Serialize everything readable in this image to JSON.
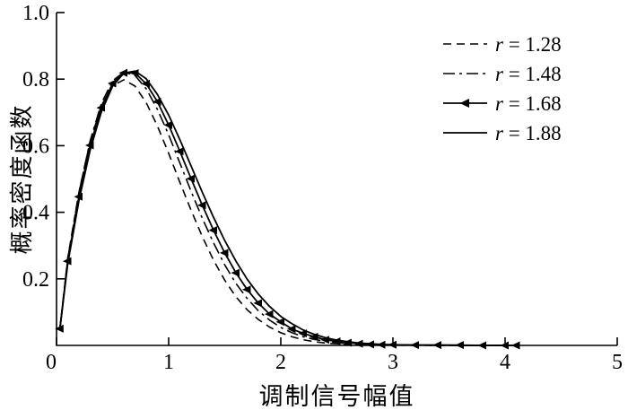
{
  "figure": {
    "background": "#ffffff",
    "axis_color": "#000000",
    "line_color": "#000000"
  },
  "chart_data": {
    "type": "line",
    "title": "",
    "xlabel": "调制信号幅值",
    "ylabel": "概率密度函数",
    "xlim": [
      0,
      5
    ],
    "ylim": [
      0,
      1.0
    ],
    "x_ticks": [
      0,
      1,
      2,
      3,
      4,
      5
    ],
    "x_tick_labels": [
      "0",
      "1",
      "2",
      "3",
      "4",
      "5"
    ],
    "y_ticks": [
      0.2,
      0.4,
      0.6,
      0.8,
      1.0
    ],
    "y_tick_labels": [
      "0.2",
      "0.4",
      "0.6",
      "0.8",
      "1.0"
    ],
    "grid": false,
    "legend_position": "top-right",
    "x": [
      0.03,
      0.1,
      0.2,
      0.3,
      0.4,
      0.5,
      0.6,
      0.7,
      0.8,
      0.9,
      1.0,
      1.1,
      1.2,
      1.3,
      1.4,
      1.5,
      1.6,
      1.7,
      1.8,
      1.9,
      2.0,
      2.1,
      2.2,
      2.3,
      2.4,
      2.5,
      2.6,
      2.7,
      2.8,
      2.9,
      3.0,
      3.2,
      3.4,
      3.6,
      3.8,
      4.0,
      4.1
    ],
    "series": [
      {
        "name": "r = 1.28",
        "style": "dashed",
        "marker": "none",
        "color": "#000000",
        "values": [
          0.05,
          0.262,
          0.46,
          0.613,
          0.72,
          0.78,
          0.798,
          0.779,
          0.729,
          0.659,
          0.577,
          0.49,
          0.406,
          0.327,
          0.256,
          0.196,
          0.146,
          0.107,
          0.078,
          0.055,
          0.038,
          0.026,
          0.017,
          0.011,
          0.007,
          0.005,
          0.003,
          0.002,
          0.001,
          0.001,
          0.001,
          0.0,
          0.0,
          0.0,
          0.0,
          0.0,
          0.0
        ]
      },
      {
        "name": "r = 1.48",
        "style": "dash-dot",
        "marker": "none",
        "color": "#000000",
        "values": [
          0.05,
          0.26,
          0.459,
          0.615,
          0.727,
          0.795,
          0.821,
          0.811,
          0.771,
          0.709,
          0.633,
          0.548,
          0.463,
          0.382,
          0.308,
          0.242,
          0.186,
          0.141,
          0.104,
          0.076,
          0.054,
          0.038,
          0.026,
          0.018,
          0.012,
          0.008,
          0.005,
          0.003,
          0.002,
          0.002,
          0.001,
          0.001,
          0.0,
          0.0,
          0.0,
          0.0,
          0.0
        ]
      },
      {
        "name": "r = 1.68",
        "style": "solid",
        "marker": "left-triangle",
        "color": "#000000",
        "values": [
          0.05,
          0.253,
          0.447,
          0.601,
          0.714,
          0.787,
          0.819,
          0.818,
          0.786,
          0.732,
          0.662,
          0.583,
          0.501,
          0.421,
          0.346,
          0.278,
          0.218,
          0.168,
          0.127,
          0.094,
          0.071,
          0.049,
          0.036,
          0.026,
          0.017,
          0.012,
          0.008,
          0.005,
          0.003,
          0.002,
          0.002,
          0.001,
          0.001,
          0.001,
          0.0,
          0.0,
          0.0
        ]
      },
      {
        "name": "r = 1.88",
        "style": "solid",
        "marker": "none",
        "color": "#000000",
        "values": [
          0.05,
          0.245,
          0.435,
          0.587,
          0.702,
          0.779,
          0.818,
          0.824,
          0.801,
          0.754,
          0.692,
          0.618,
          0.539,
          0.46,
          0.385,
          0.315,
          0.253,
          0.199,
          0.154,
          0.117,
          0.087,
          0.065,
          0.046,
          0.033,
          0.023,
          0.016,
          0.011,
          0.007,
          0.005,
          0.003,
          0.002,
          0.001,
          0.001,
          0.0,
          0.0,
          0.0,
          0.0
        ]
      }
    ]
  }
}
